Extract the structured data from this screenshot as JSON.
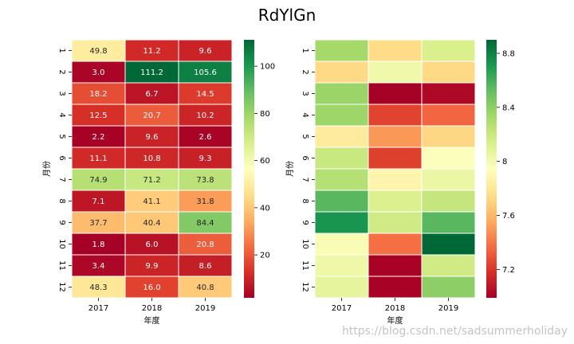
{
  "title": "RdYlGn",
  "watermark": "https://blog.csdn.net/sadsummerholiday",
  "colormap": [
    "#a50026",
    "#d73027",
    "#f46d43",
    "#fdae61",
    "#fee08b",
    "#ffffbf",
    "#d9ef8b",
    "#a6d96a",
    "#66bd63",
    "#1a9850",
    "#006837"
  ],
  "chart_data": [
    {
      "type": "heatmap",
      "title": "",
      "xlabel": "年度",
      "ylabel": "月份",
      "x": [
        "2017",
        "2018",
        "2019"
      ],
      "y": [
        "1",
        "2",
        "3",
        "4",
        "5",
        "6",
        "7",
        "8",
        "9",
        "10",
        "11",
        "12"
      ],
      "values": [
        [
          49.8,
          11.2,
          9.6
        ],
        [
          3.0,
          111.2,
          105.6
        ],
        [
          18.2,
          6.7,
          14.5
        ],
        [
          12.5,
          20.7,
          10.2
        ],
        [
          2.2,
          9.6,
          2.6
        ],
        [
          11.1,
          10.8,
          9.3
        ],
        [
          74.9,
          71.2,
          73.8
        ],
        [
          7.1,
          41.1,
          31.8
        ],
        [
          37.7,
          40.4,
          84.4
        ],
        [
          1.8,
          6.0,
          20.8
        ],
        [
          3.4,
          9.9,
          8.6
        ],
        [
          48.3,
          16.0,
          40.8
        ]
      ],
      "annot": true,
      "vmin": 1.8,
      "vmax": 111.2,
      "colorbar_ticks": [
        20,
        40,
        60,
        80,
        100
      ]
    },
    {
      "type": "heatmap",
      "title": "",
      "xlabel": "年度",
      "ylabel": "月份",
      "x": [
        "2017",
        "2018",
        "2019"
      ],
      "y": [
        "1",
        "2",
        "3",
        "4",
        "5",
        "6",
        "7",
        "8",
        "9",
        "10",
        "11",
        "12"
      ],
      "values": [
        [
          8.33,
          7.74,
          8.13
        ],
        [
          7.73,
          8.02,
          7.73
        ],
        [
          8.36,
          6.99,
          7.02
        ],
        [
          8.35,
          7.24,
          7.35
        ],
        [
          7.82,
          7.5,
          7.72
        ],
        [
          8.2,
          7.23,
          7.96
        ],
        [
          8.27,
          7.88,
          8.04
        ],
        [
          8.55,
          8.12,
          8.21
        ],
        [
          8.72,
          8.17,
          8.55
        ],
        [
          7.98,
          7.38,
          8.9
        ],
        [
          8.03,
          7.0,
          8.17
        ],
        [
          8.07,
          7.0,
          8.4
        ]
      ],
      "annot": false,
      "vmin": 6.99,
      "vmax": 8.9,
      "colorbar_ticks": [
        7.2,
        7.6,
        8.0,
        8.4,
        8.8
      ]
    }
  ]
}
